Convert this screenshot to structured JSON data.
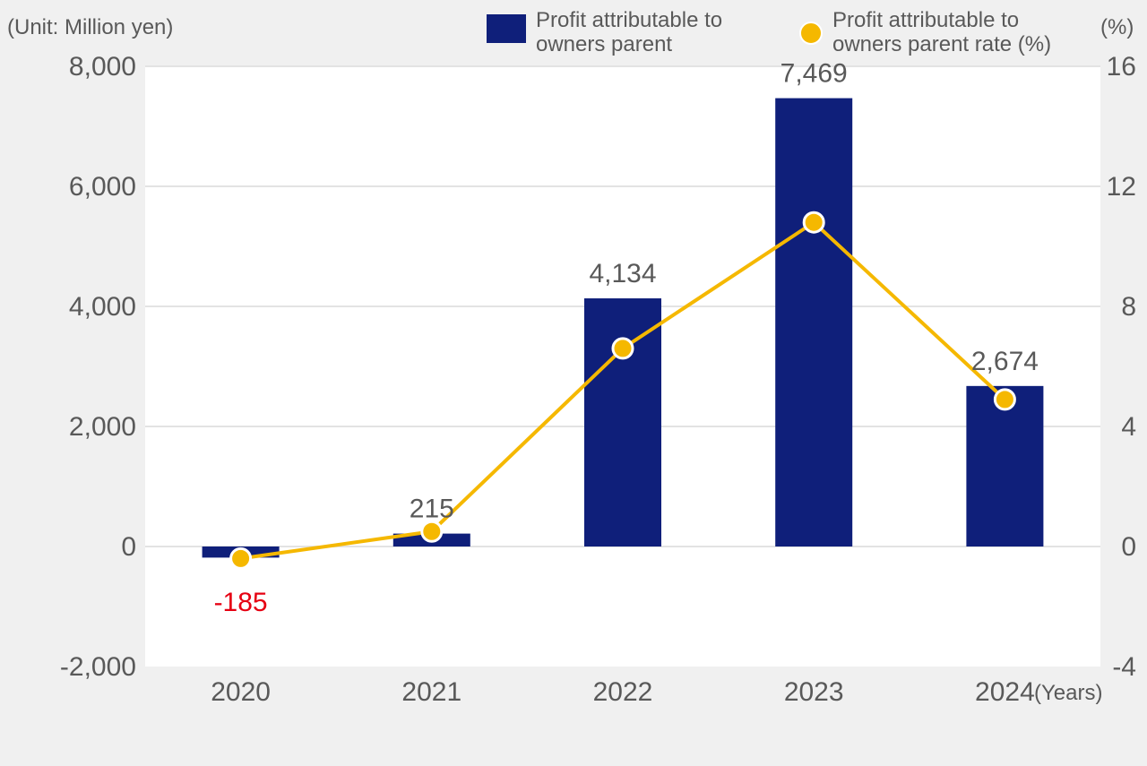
{
  "chart_data": {
    "type": "bar",
    "unit_label": "(Unit: Million yen)",
    "right_unit_label": "(%)",
    "x_suffix": "(Years)",
    "categories": [
      "2020",
      "2021",
      "2022",
      "2023",
      "2024"
    ],
    "series": [
      {
        "name": "Profit attributable to owners parent",
        "type": "bar",
        "axis": "left",
        "values": [
          -185,
          215,
          4134,
          7469,
          2674
        ],
        "labels": [
          "-185",
          "215",
          "4,134",
          "7,469",
          "2,674"
        ],
        "color": "#0f1f7a"
      },
      {
        "name": "Profit attributable to owners parent rate (%)",
        "type": "line",
        "axis": "right",
        "values": [
          -0.4,
          0.5,
          6.6,
          10.8,
          4.9
        ],
        "color": "#f5b800"
      }
    ],
    "left_axis": {
      "min": -2000,
      "max": 8000,
      "ticks": [
        -2000,
        0,
        2000,
        4000,
        6000,
        8000
      ],
      "tick_labels": [
        "-2,000",
        "0",
        "2,000",
        "4,000",
        "6,000",
        "8,000"
      ]
    },
    "right_axis": {
      "min": -4,
      "max": 16,
      "ticks": [
        -4,
        0,
        4,
        8,
        12,
        16
      ],
      "tick_labels": [
        "-4",
        "0",
        "4",
        "8",
        "12",
        "16"
      ]
    },
    "negative_label_color": "#e60012",
    "label_color": "#595959",
    "grid": true,
    "legend": {
      "position": "top-right",
      "bar_label_lines": [
        "Profit attributable to",
        "owners parent"
      ],
      "line_label_lines": [
        "Profit attributable to",
        "owners parent rate (%)"
      ]
    }
  }
}
